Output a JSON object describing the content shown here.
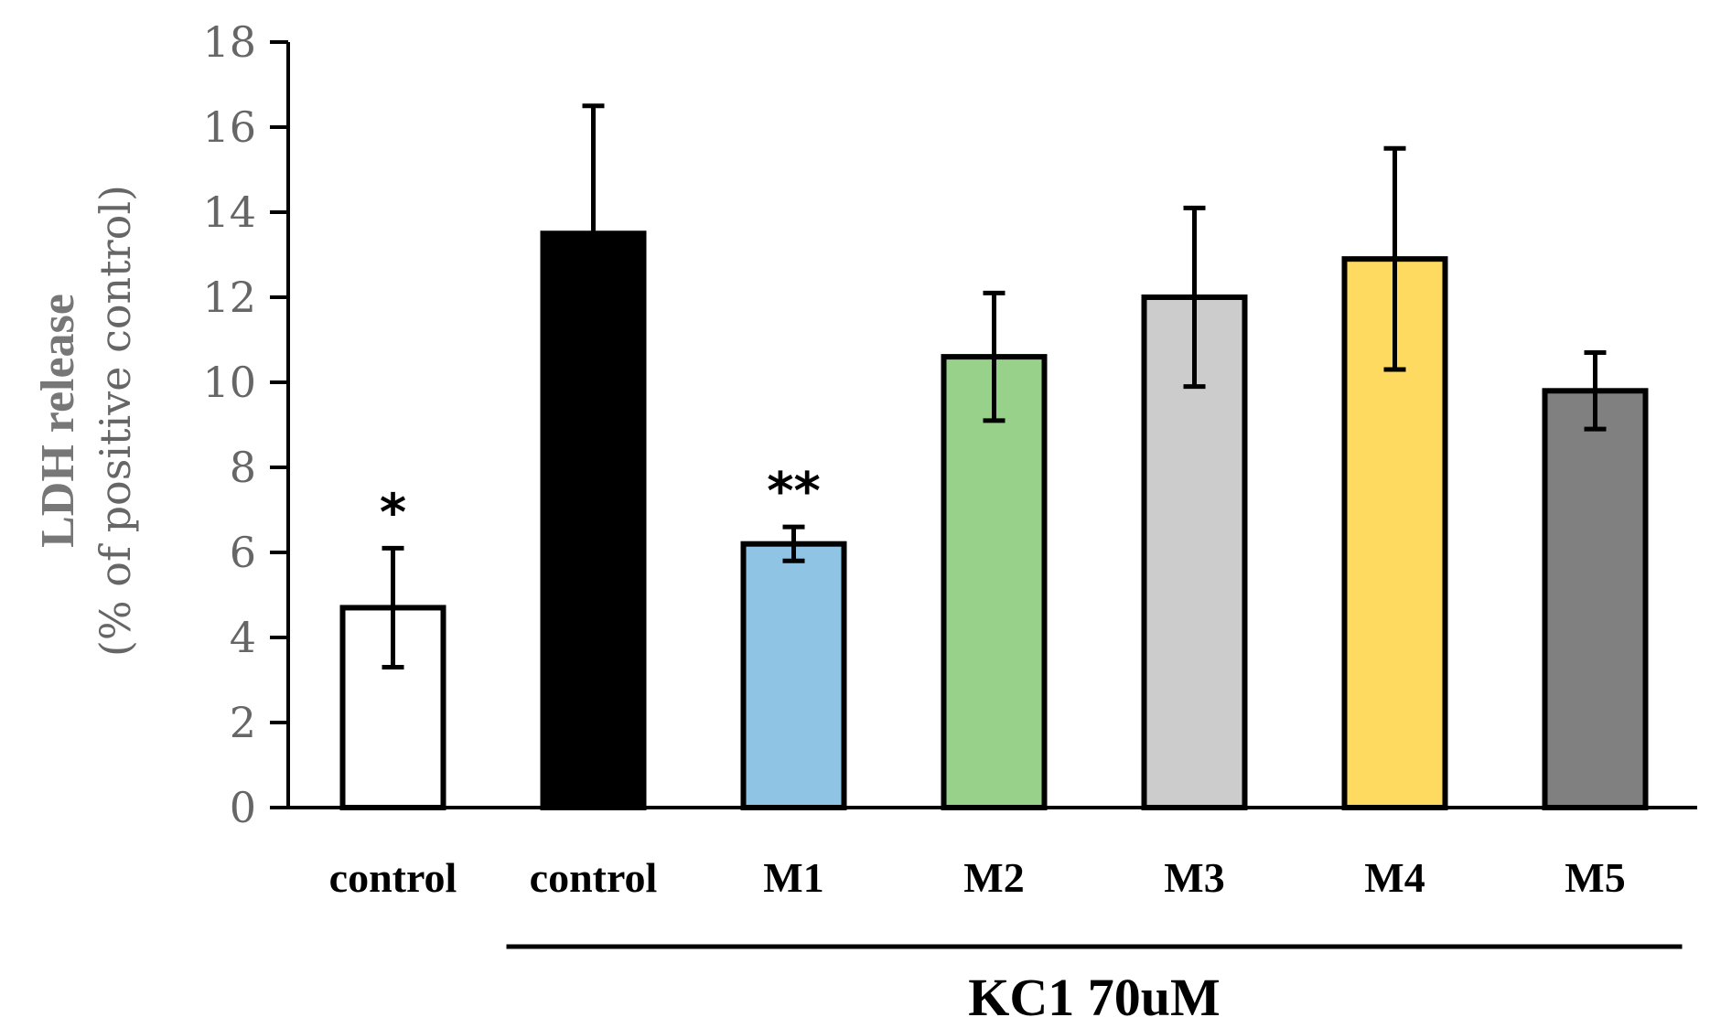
{
  "chart_data": {
    "type": "bar",
    "title": "",
    "ylabel": "LDH release",
    "ylabel_sub": "(% of positive control)",
    "xlabel": "",
    "ylim": [
      0,
      18
    ],
    "yticks": [
      0,
      2,
      4,
      6,
      8,
      10,
      12,
      14,
      16,
      18
    ],
    "grid": false,
    "categories": [
      "control",
      "control",
      "M1",
      "M2",
      "M3",
      "M4",
      "M5"
    ],
    "values": [
      4.7,
      13.5,
      6.2,
      10.6,
      12.0,
      12.9,
      9.8
    ],
    "errors": [
      1.4,
      3.0,
      0.4,
      1.5,
      2.1,
      2.6,
      0.9
    ],
    "colors": [
      "#ffffff",
      "#000000",
      "#8fc4e4",
      "#98d28a",
      "#cccccc",
      "#fedb60",
      "#808080"
    ],
    "significance": [
      "*",
      "",
      "**",
      "",
      "",
      "",
      ""
    ],
    "group_label": "KC1 70uM",
    "group_span": [
      1,
      6
    ]
  }
}
